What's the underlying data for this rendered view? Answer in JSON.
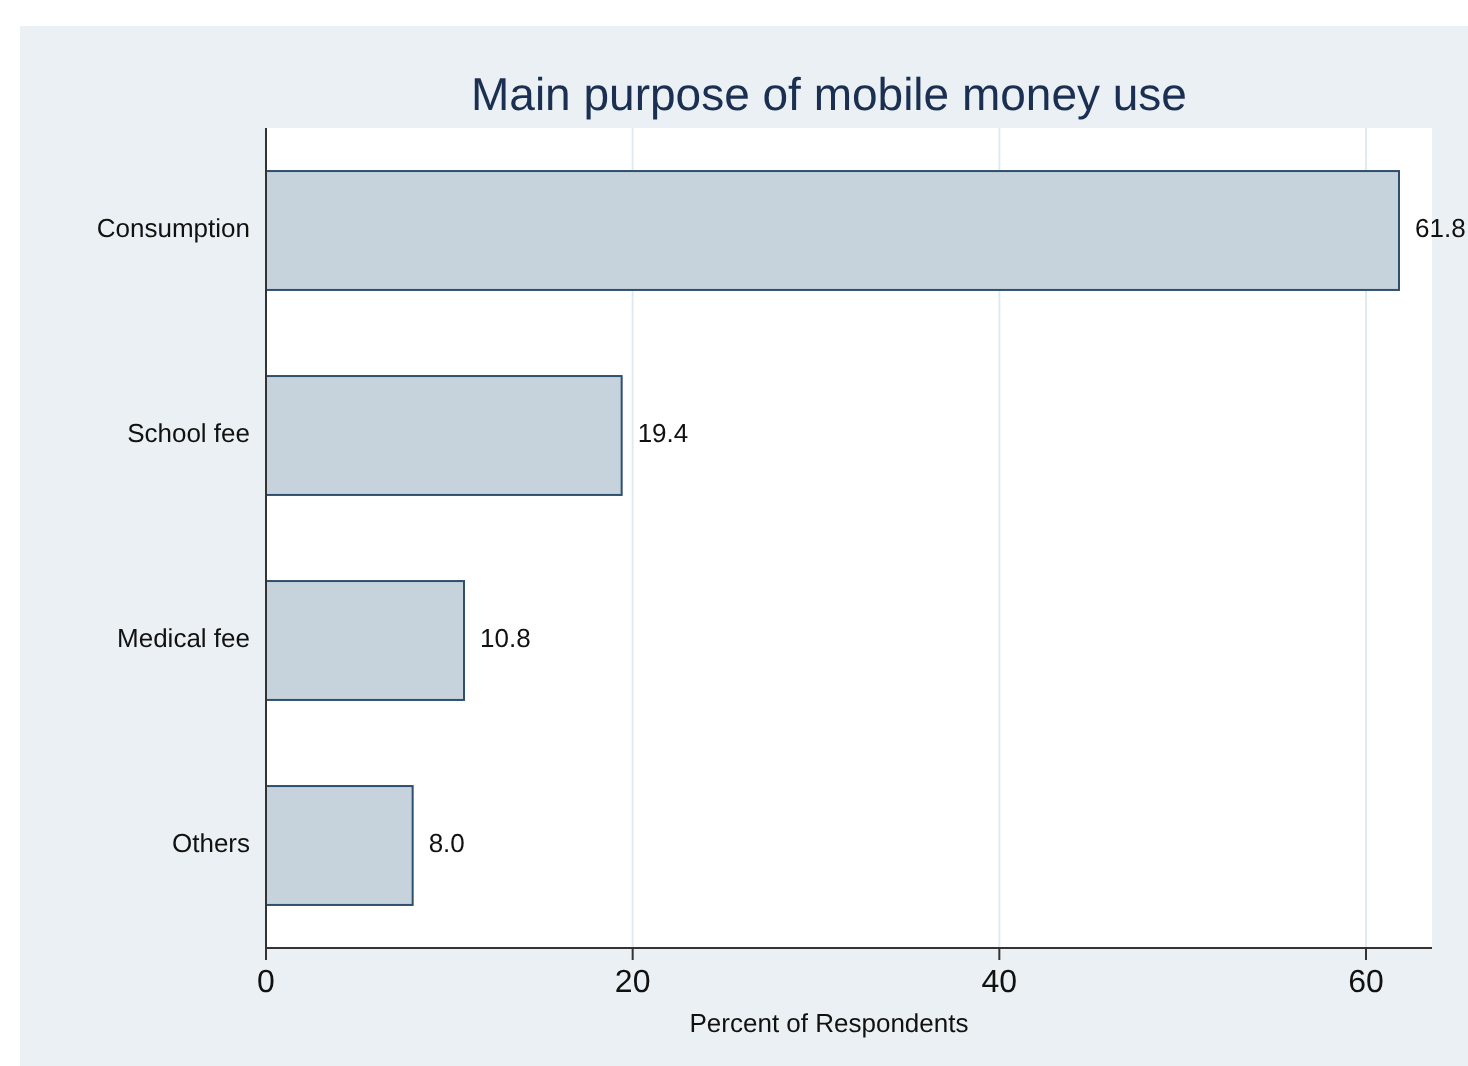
{
  "chart_data": {
    "type": "bar",
    "orientation": "horizontal",
    "title": "Main purpose of mobile money use",
    "xlabel": "Percent of Respondents",
    "categories": [
      "Consumption",
      "School fee",
      "Medical fee",
      "Others"
    ],
    "values": [
      61.8,
      19.4,
      10.8,
      8.0
    ],
    "value_labels": [
      "61.8",
      "19.4",
      "10.8",
      "8.0"
    ],
    "color": "#c6d2dc",
    "xlim": [
      0,
      63.6
    ],
    "xticks": [
      0,
      20,
      40,
      60
    ],
    "grid": "x"
  }
}
